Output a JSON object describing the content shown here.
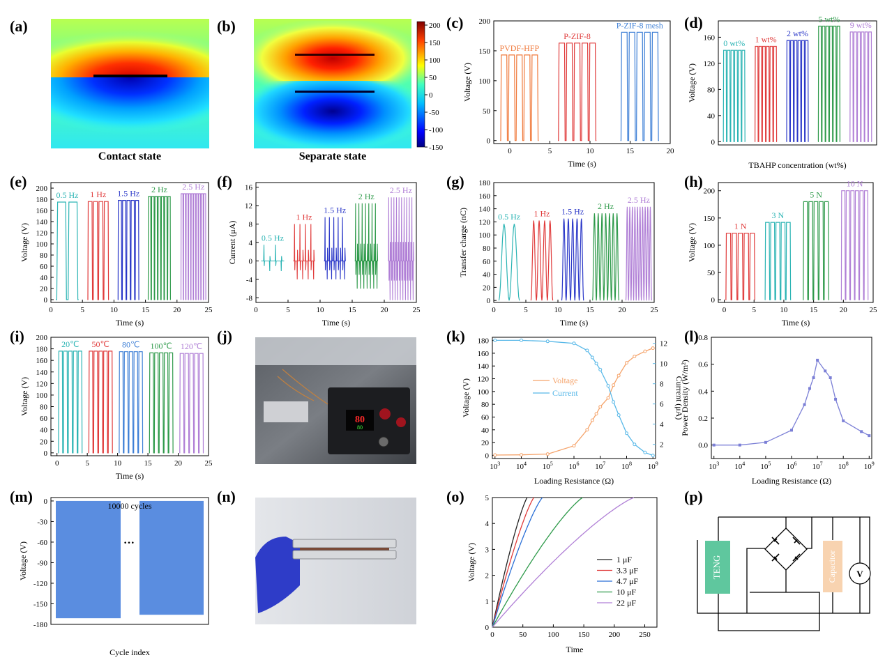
{
  "chart_data": [
    {
      "id": "a",
      "panel_label": "(a)",
      "type": "heatmap",
      "caption": "Contact state"
    },
    {
      "id": "b",
      "panel_label": "(b)",
      "type": "heatmap",
      "caption": "Separate state",
      "colorbar_ticks": [
        200,
        150,
        100,
        50,
        0,
        -50,
        -100,
        -150
      ],
      "colorbar_range": [
        -150,
        210
      ]
    },
    {
      "id": "c",
      "panel_label": "(c)",
      "type": "line",
      "xlabel": "Time (s)",
      "ylabel": "Voltage (V)",
      "xlim": [
        -2,
        20
      ],
      "ylim": [
        -5,
        200
      ],
      "xticks": [
        0,
        5,
        10,
        15,
        20
      ],
      "yticks": [
        0,
        50,
        100,
        150,
        200
      ],
      "series": [
        {
          "name": "PVDF-HFP",
          "color": "#f07a3c",
          "t0": -1.2,
          "t1": 3.6,
          "n": 5,
          "peak": 143
        },
        {
          "name": "P-ZIF-8",
          "color": "#e03a3a",
          "t0": 6.0,
          "t1": 10.8,
          "n": 5,
          "peak": 163
        },
        {
          "name": "P-ZIF-8 mesh",
          "color": "#3d7fd6",
          "t0": 13.8,
          "t1": 18.6,
          "n": 5,
          "peak": 181
        }
      ]
    },
    {
      "id": "d",
      "panel_label": "(d)",
      "type": "line",
      "xlabel": "TBAHP concentration (wt%)",
      "ylabel": "Voltage (V)",
      "ylim": [
        -5,
        185
      ],
      "yticks": [
        0,
        40,
        80,
        120,
        160
      ],
      "xlim": [
        0,
        10
      ],
      "series": [
        {
          "name": "0 wt%",
          "color": "#2bb4b4",
          "t0": 0.3,
          "t1": 1.7,
          "n": 6,
          "peak": 140
        },
        {
          "name": "1 wt%",
          "color": "#e03a3a",
          "t0": 2.3,
          "t1": 3.7,
          "n": 6,
          "peak": 146
        },
        {
          "name": "2 wt%",
          "color": "#2a37c8",
          "t0": 4.3,
          "t1": 5.7,
          "n": 6,
          "peak": 155
        },
        {
          "name": "5 wt%",
          "color": "#2e9a4a",
          "t0": 6.3,
          "t1": 7.7,
          "n": 6,
          "peak": 177
        },
        {
          "name": "9 wt%",
          "color": "#b07fd6",
          "t0": 8.3,
          "t1": 9.7,
          "n": 6,
          "peak": 168
        }
      ]
    },
    {
      "id": "e",
      "panel_label": "(e)",
      "type": "line",
      "xlabel": "Time (s)",
      "ylabel": "Voltage (V)",
      "xlim": [
        0,
        25
      ],
      "ylim": [
        -5,
        210
      ],
      "xticks": [
        0,
        5,
        10,
        15,
        20,
        25
      ],
      "yticks": [
        0,
        20,
        40,
        60,
        80,
        100,
        120,
        140,
        160,
        180,
        200
      ],
      "series": [
        {
          "name": "0.5 Hz",
          "color": "#2bb4b4",
          "t0": 0.8,
          "t1": 4.4,
          "n": 2,
          "peak": 175
        },
        {
          "name": "1 Hz",
          "color": "#e03a3a",
          "t0": 5.8,
          "t1": 9.2,
          "n": 4,
          "peak": 176
        },
        {
          "name": "1.5 Hz",
          "color": "#2a37c8",
          "t0": 10.6,
          "t1": 14.0,
          "n": 5,
          "peak": 178
        },
        {
          "name": "2 Hz",
          "color": "#2e9a4a",
          "t0": 15.4,
          "t1": 19.0,
          "n": 7,
          "peak": 185
        },
        {
          "name": "2.5 Hz",
          "color": "#b07fd6",
          "t0": 20.6,
          "t1": 24.6,
          "n": 10,
          "peak": 190
        }
      ]
    },
    {
      "id": "f",
      "panel_label": "(f)",
      "type": "line",
      "xlabel": "Time (s)",
      "ylabel": "Current (μA)",
      "xlim": [
        0,
        25
      ],
      "ylim": [
        -9,
        17
      ],
      "xticks": [
        0,
        5,
        10,
        15,
        20,
        25
      ],
      "yticks": [
        -8,
        -4,
        0,
        4,
        8,
        12,
        16
      ],
      "series": [
        {
          "name": "0.5 Hz",
          "color": "#2bb4b4",
          "t0": 0.8,
          "t1": 4.4,
          "n": 2,
          "peak": 3.5,
          "trough": -2.2
        },
        {
          "name": "1 Hz",
          "color": "#e03a3a",
          "t0": 5.8,
          "t1": 9.2,
          "n": 4,
          "peak": 8,
          "trough": -4
        },
        {
          "name": "1.5 Hz",
          "color": "#2a37c8",
          "t0": 10.6,
          "t1": 14.0,
          "n": 5,
          "peak": 9.5,
          "trough": -4
        },
        {
          "name": "2 Hz",
          "color": "#2e9a4a",
          "t0": 15.4,
          "t1": 19.0,
          "n": 7,
          "peak": 12.5,
          "trough": -6
        },
        {
          "name": "2.5 Hz",
          "color": "#b07fd6",
          "t0": 20.6,
          "t1": 24.6,
          "n": 10,
          "peak": 13.8,
          "trough": -8.5
        }
      ]
    },
    {
      "id": "g",
      "panel_label": "(g)",
      "type": "line",
      "xlabel": "Time (s)",
      "ylabel": "Transfer charge (nC)",
      "xlim": [
        0,
        25
      ],
      "ylim": [
        -3,
        180
      ],
      "xticks": [
        0,
        5,
        10,
        15,
        20,
        25
      ],
      "yticks": [
        0,
        20,
        40,
        60,
        80,
        100,
        120,
        140,
        160,
        180
      ],
      "series": [
        {
          "name": "0.5 Hz",
          "color": "#2bb4b4",
          "t0": 0.8,
          "t1": 4.0,
          "n": 2,
          "peak": 117
        },
        {
          "name": "1 Hz",
          "color": "#e03a3a",
          "t0": 5.8,
          "t1": 9.2,
          "n": 4,
          "peak": 122
        },
        {
          "name": "1.5 Hz",
          "color": "#2a37c8",
          "t0": 10.6,
          "t1": 14.0,
          "n": 5,
          "peak": 125
        },
        {
          "name": "2 Hz",
          "color": "#2e9a4a",
          "t0": 15.4,
          "t1": 19.5,
          "n": 7,
          "peak": 133
        },
        {
          "name": "2.5 Hz",
          "color": "#b07fd6",
          "t0": 20.6,
          "t1": 24.6,
          "n": 10,
          "peak": 143
        }
      ]
    },
    {
      "id": "h",
      "panel_label": "(h)",
      "type": "line",
      "xlabel": "Time (s)",
      "ylabel": "Voltage (V)",
      "xlim": [
        -1,
        25
      ],
      "ylim": [
        -5,
        215
      ],
      "xticks": [
        0,
        5,
        10,
        15,
        20,
        25
      ],
      "yticks": [
        0,
        50,
        100,
        150,
        200
      ],
      "series": [
        {
          "name": "1 N",
          "color": "#e03a3a",
          "t0": 0.2,
          "t1": 5.2,
          "n": 5,
          "peak": 122
        },
        {
          "name": "3 N",
          "color": "#2bb4b4",
          "t0": 6.8,
          "t1": 11.2,
          "n": 5,
          "peak": 142
        },
        {
          "name": "5 N",
          "color": "#2e9a4a",
          "t0": 13.2,
          "t1": 17.6,
          "n": 5,
          "peak": 180
        },
        {
          "name": "10 N",
          "color": "#b07fd6",
          "t0": 19.6,
          "t1": 24.2,
          "n": 6,
          "peak": 200
        }
      ]
    },
    {
      "id": "i",
      "panel_label": "(i)",
      "type": "line",
      "xlabel": "Time (s)",
      "ylabel": "Voltage (V)",
      "xlim": [
        -1,
        25
      ],
      "ylim": [
        -5,
        200
      ],
      "xticks": [
        0,
        5,
        10,
        15,
        20,
        25
      ],
      "yticks": [
        0,
        20,
        40,
        60,
        80,
        100,
        120,
        140,
        160,
        180,
        200
      ],
      "series": [
        {
          "name": "20℃",
          "color": "#2bb4b4",
          "t0": 0.2,
          "t1": 4.2,
          "n": 5,
          "peak": 176
        },
        {
          "name": "50℃",
          "color": "#e03a3a",
          "t0": 5.2,
          "t1": 9.2,
          "n": 5,
          "peak": 176
        },
        {
          "name": "80℃",
          "color": "#3d7fd6",
          "t0": 10.2,
          "t1": 14.2,
          "n": 5,
          "peak": 175
        },
        {
          "name": "100℃",
          "color": "#2e9a4a",
          "t0": 15.2,
          "t1": 19.2,
          "n": 5,
          "peak": 173
        },
        {
          "name": "120℃",
          "color": "#b07fd6",
          "t0": 20.2,
          "t1": 24.2,
          "n": 5,
          "peak": 172
        }
      ]
    },
    {
      "id": "j",
      "panel_label": "(j)",
      "type": "photo",
      "display_main": "80",
      "display_sub": "80"
    },
    {
      "id": "k",
      "panel_label": "(k)",
      "type": "line",
      "xlabel": "Loading Resistance (Ω)",
      "ylabel_left": "Voltage (V)",
      "ylabel_right": "Current (μA)",
      "xlim_log": [
        2.9,
        9.1
      ],
      "ylim_left": [
        -5,
        185
      ],
      "ylim_right": [
        0.6,
        12.6
      ],
      "yticks_left": [
        0,
        20,
        40,
        60,
        80,
        100,
        120,
        140,
        160,
        180
      ],
      "yticks_right": [
        2,
        4,
        6,
        8,
        10,
        12
      ],
      "xticks_exp": [
        3,
        4,
        5,
        6,
        7,
        8,
        9
      ],
      "series": [
        {
          "name": "Voltage",
          "color": "#f5a36a",
          "axis": "left",
          "x_exp": [
            3,
            4,
            5,
            6,
            6.5,
            6.7,
            6.85,
            7,
            7.3,
            7.5,
            7.7,
            8,
            8.3,
            8.7,
            9
          ],
          "y": [
            0.5,
            0.8,
            2,
            15,
            40,
            55,
            65,
            76,
            90,
            110,
            125,
            145,
            155,
            163,
            168
          ]
        },
        {
          "name": "Current",
          "color": "#58b8e8",
          "axis": "right",
          "x_exp": [
            3,
            4,
            5,
            6,
            6.5,
            6.7,
            6.85,
            7,
            7.3,
            7.5,
            7.7,
            8,
            8.3,
            8.7,
            9
          ],
          "y": [
            12.3,
            12.3,
            12.2,
            12.0,
            11.3,
            10.6,
            10.0,
            9.4,
            7.8,
            6.2,
            4.9,
            3.1,
            2.0,
            1.2,
            0.9
          ]
        }
      ]
    },
    {
      "id": "l",
      "panel_label": "(l)",
      "type": "line",
      "xlabel": "Loading Resistance (Ω)",
      "ylabel": "Power Density (W/m²)",
      "xlim_log": [
        2.9,
        9.1
      ],
      "ylim": [
        -0.1,
        0.8
      ],
      "yticks": [
        0.0,
        0.2,
        0.4,
        0.6,
        0.8
      ],
      "xticks_exp": [
        3,
        4,
        5,
        6,
        7,
        8,
        9
      ],
      "series": [
        {
          "name": "",
          "color": "#7b7fd6",
          "x_exp": [
            3,
            4,
            5,
            6,
            6.5,
            6.7,
            6.85,
            7,
            7.3,
            7.5,
            7.7,
            8,
            8.7,
            9
          ],
          "y": [
            0.0,
            0.0,
            0.02,
            0.11,
            0.3,
            0.42,
            0.5,
            0.63,
            0.55,
            0.5,
            0.34,
            0.18,
            0.1,
            0.07
          ]
        }
      ]
    },
    {
      "id": "m",
      "panel_label": "(m)",
      "type": "area",
      "xlabel": "Cycle index",
      "ylabel": "Voltage (V)",
      "ylim": [
        -180,
        5
      ],
      "yticks": [
        0,
        -30,
        -60,
        -90,
        -120,
        -150,
        -180
      ],
      "annotation": "10000 cycles",
      "ellipsis": "···",
      "color": "#5a8de0",
      "trough_left": -171,
      "trough_right": -166
    },
    {
      "id": "n",
      "panel_label": "(n)",
      "type": "photo"
    },
    {
      "id": "o",
      "panel_label": "(o)",
      "type": "line",
      "xlabel": "Time",
      "ylabel": "Voltage (V)",
      "xlim": [
        0,
        270
      ],
      "ylim": [
        0,
        5
      ],
      "xticks": [
        0,
        50,
        100,
        150,
        200,
        250
      ],
      "yticks": [
        0,
        1,
        2,
        3,
        4,
        5
      ],
      "series": [
        {
          "name": "1 μF",
          "color": "#222222",
          "t_end": 57
        },
        {
          "name": "3.3 μF",
          "color": "#e03a3a",
          "t_end": 68
        },
        {
          "name": "4.7 μF",
          "color": "#2a6fd6",
          "t_end": 82
        },
        {
          "name": "10 μF",
          "color": "#2e9a4a",
          "t_end": 148
        },
        {
          "name": "22 μF",
          "color": "#b07fd6",
          "t_end": 232
        }
      ]
    },
    {
      "id": "p",
      "panel_label": "(p)",
      "type": "diagram",
      "teng_label": "TENG",
      "cap_label": "Capacitor",
      "meter_label": "V",
      "teng_color": "#5fc79e",
      "cap_color": "#f8d3b0"
    }
  ]
}
